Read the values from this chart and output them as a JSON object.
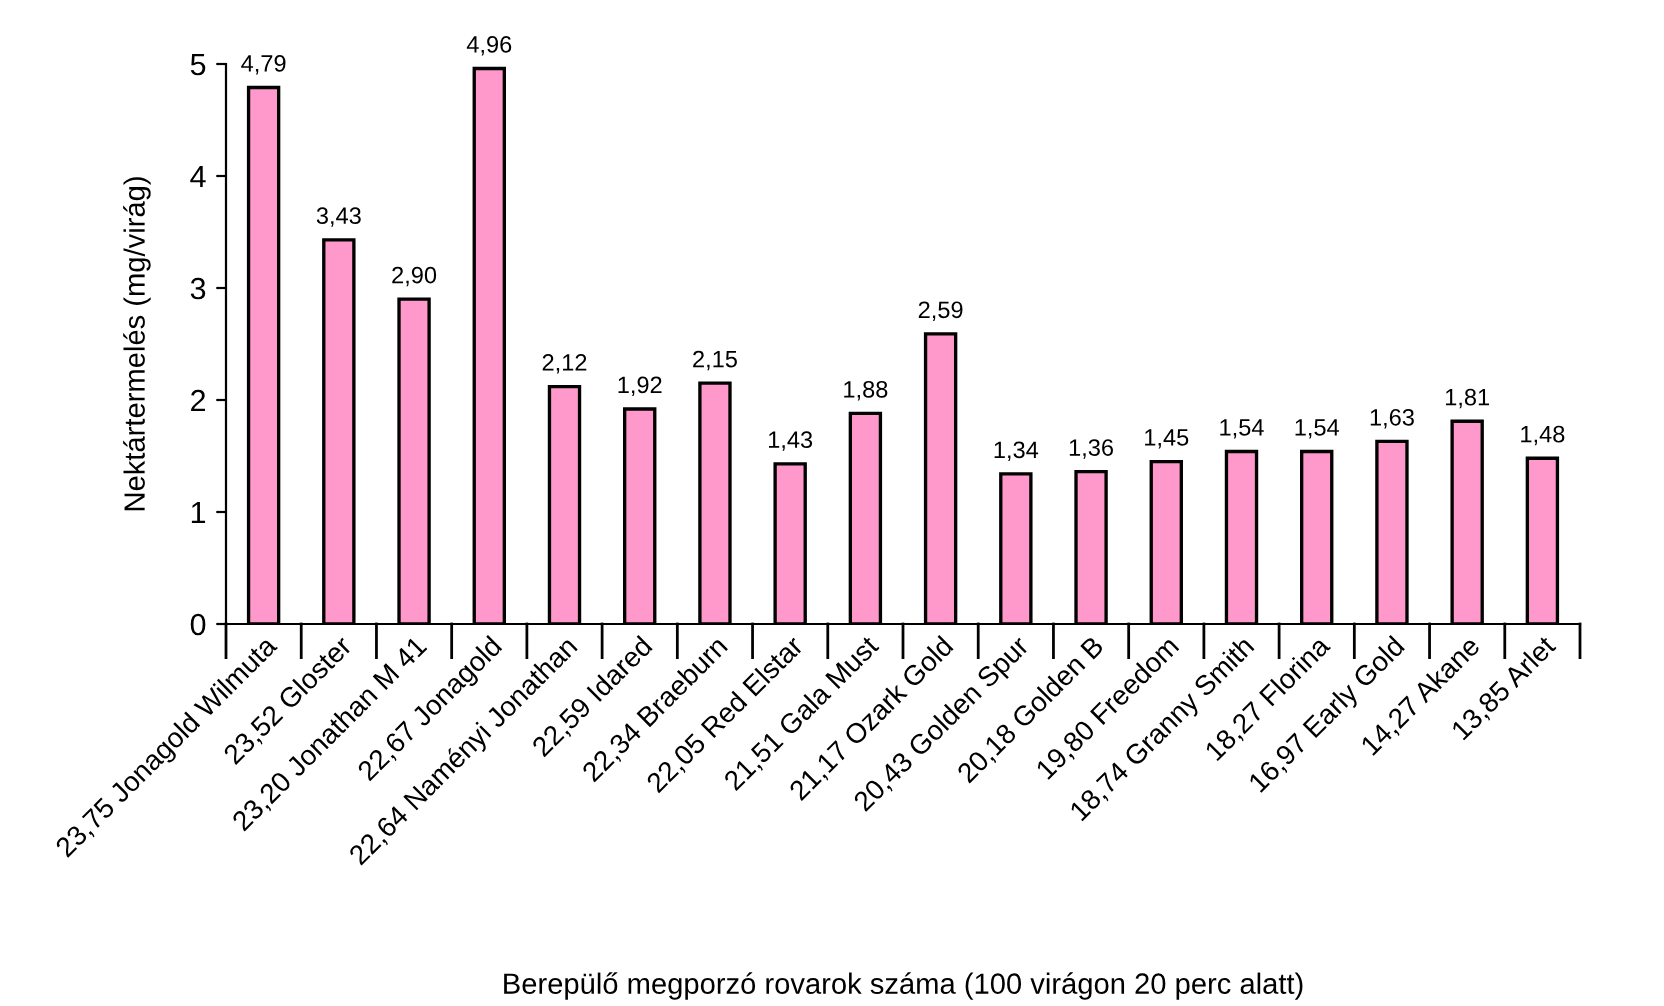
{
  "chart_data": {
    "type": "bar",
    "xlabel": "Berepülő megporzó rovarok száma (100 virágon 20 perc alatt)",
    "ylabel": "Nektártermelés (mg/virág)",
    "categories": [
      "23,75 Jonagold Wilmuta",
      "23,52 Gloster",
      "23,20 Jonathan M 41",
      "22,67 Jonagold",
      "22,64 Naményi Jonathan",
      "22,59 Idared",
      "22,34 Braeburn",
      "22,05 Red Elstar",
      "21,51 Gala Must",
      "21,17 Ozark Gold",
      "20,43 Golden Spur",
      "20,18 Golden B",
      "19,80 Freedom",
      "18,74 Granny Smith",
      "18,27 Florina",
      "16,97 Early Gold",
      "14,27 Akane",
      "13,85 Arlet"
    ],
    "values": [
      4.79,
      3.43,
      2.9,
      4.96,
      2.12,
      1.92,
      2.15,
      1.43,
      1.88,
      2.59,
      1.34,
      1.36,
      1.45,
      1.54,
      1.54,
      1.63,
      1.81,
      1.48
    ],
    "value_labels": [
      "4,79",
      "3,43",
      "2,90",
      "4,96",
      "2,12",
      "1,92",
      "2,15",
      "1,43",
      "1,88",
      "2,59",
      "1,34",
      "1,36",
      "1,45",
      "1,54",
      "1,54",
      "1,63",
      "1,81",
      "1,48"
    ],
    "color": "#ff99cc",
    "ylim": [
      0,
      5
    ],
    "yticks": [
      0,
      1,
      2,
      3,
      4,
      5
    ],
    "grid": false,
    "legend": false
  }
}
